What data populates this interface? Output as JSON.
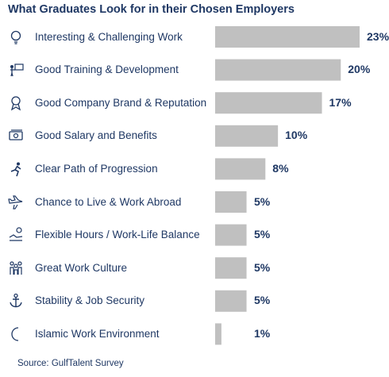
{
  "chart_data": {
    "type": "bar",
    "orientation": "horizontal",
    "title": "What Graduates Look for in their Chosen Employers",
    "source": "Source: GulfTalent Survey",
    "categories": [
      "Interesting & Challenging Work",
      "Good Training & Development",
      "Good Company Brand & Reputation",
      "Good Salary and Benefits",
      "Clear Path of Progression",
      "Chance to Live & Work Abroad",
      "Flexible Hours / Work-Life Balance",
      "Great Work Culture",
      "Stability & Job Security",
      "Islamic Work Environment"
    ],
    "values": [
      23,
      20,
      17,
      10,
      8,
      5,
      5,
      5,
      5,
      1
    ],
    "value_labels": [
      "23%",
      "20%",
      "17%",
      "10%",
      "8%",
      "5%",
      "5%",
      "5%",
      "5%",
      "1%"
    ],
    "icons": [
      "lightbulb-icon",
      "trainer-icon",
      "award-ribbon-icon",
      "money-icon",
      "runner-icon",
      "airplane-icon",
      "relax-icon",
      "team-icon",
      "anchor-icon",
      "crescent-icon"
    ],
    "xlim": [
      0,
      23
    ],
    "grid": false,
    "bar_color": "#c0c0c0",
    "text_color": "#1f3864"
  }
}
